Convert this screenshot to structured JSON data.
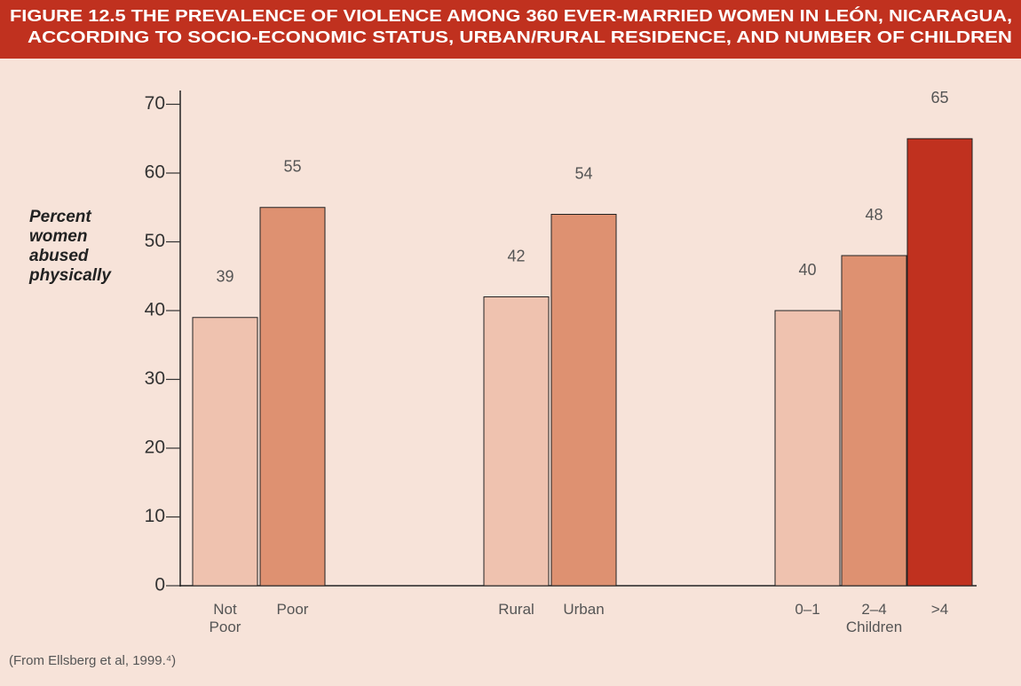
{
  "chart_data": {
    "type": "bar",
    "title": [
      "FIGURE 12.5  THE PREVALENCE OF VIOLENCE AMONG 360 EVER-MARRIED WOMEN IN LEÓN, NICARAGUA,",
      "ACCORDING TO SOCIO-ECONOMIC STATUS, URBAN/RURAL RESIDENCE, AND NUMBER OF CHILDREN"
    ],
    "y_label": "Percent women abused physically",
    "categories": [
      "Not Poor",
      "Poor",
      "Rural",
      "Urban",
      "0–1",
      "2–4",
      ">4"
    ],
    "group_label": "Children",
    "values": [
      39,
      55,
      42,
      54,
      40,
      48,
      65
    ],
    "colors": [
      "#efc2af",
      "#de9171",
      "#efc2af",
      "#de9171",
      "#efc2af",
      "#de9171",
      "#c0311f"
    ],
    "ylim": [
      0,
      72
    ],
    "yticks": [
      0,
      10,
      20,
      30,
      40,
      50,
      60,
      70
    ],
    "source": "(From Ellsberg et al, 1999.⁴)"
  }
}
